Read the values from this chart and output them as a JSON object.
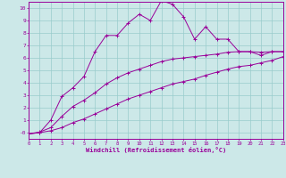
{
  "bg_color": "#cce8e8",
  "line_color": "#990099",
  "grid_color": "#99cccc",
  "xlabel": "Windchill (Refroidissement éolien,°C)",
  "xlabel_color": "#990099",
  "xlim": [
    0,
    23
  ],
  "ylim": [
    -0.5,
    10.5
  ],
  "xticks": [
    0,
    1,
    2,
    3,
    4,
    5,
    6,
    7,
    8,
    9,
    10,
    11,
    12,
    13,
    14,
    15,
    16,
    17,
    18,
    19,
    20,
    21,
    22,
    23
  ],
  "yticks": [
    0,
    1,
    2,
    3,
    4,
    5,
    6,
    7,
    8,
    9,
    10
  ],
  "ytick_labels": [
    "-0",
    "1",
    "2",
    "3",
    "4",
    "5",
    "6",
    "7",
    "8",
    "9",
    "10"
  ],
  "line1_x": [
    0,
    1,
    2,
    3,
    4,
    5,
    6,
    7,
    8,
    9,
    10,
    11,
    12,
    13,
    14,
    15,
    16,
    17,
    18,
    19,
    20,
    21,
    22,
    23
  ],
  "line1_y": [
    -0.1,
    0.0,
    1.0,
    2.9,
    3.6,
    4.5,
    6.5,
    7.8,
    7.8,
    8.8,
    9.5,
    9.0,
    10.6,
    10.3,
    9.3,
    7.5,
    8.5,
    7.5,
    7.5,
    6.5,
    6.5,
    6.2,
    6.5,
    6.5
  ],
  "line2_x": [
    0,
    1,
    2,
    3,
    4,
    5,
    6,
    7,
    8,
    9,
    10,
    11,
    12,
    13,
    14,
    15,
    16,
    17,
    18,
    19,
    20,
    21,
    22,
    23
  ],
  "line2_y": [
    -0.1,
    0.05,
    0.4,
    1.3,
    2.1,
    2.6,
    3.2,
    3.9,
    4.4,
    4.8,
    5.1,
    5.4,
    5.7,
    5.9,
    6.0,
    6.1,
    6.2,
    6.3,
    6.45,
    6.5,
    6.5,
    6.45,
    6.5,
    6.5
  ],
  "line3_x": [
    0,
    1,
    2,
    3,
    4,
    5,
    6,
    7,
    8,
    9,
    10,
    11,
    12,
    13,
    14,
    15,
    16,
    17,
    18,
    19,
    20,
    21,
    22,
    23
  ],
  "line3_y": [
    -0.1,
    0.0,
    0.15,
    0.4,
    0.8,
    1.1,
    1.5,
    1.9,
    2.3,
    2.7,
    3.0,
    3.3,
    3.6,
    3.9,
    4.1,
    4.3,
    4.6,
    4.85,
    5.1,
    5.3,
    5.4,
    5.6,
    5.8,
    6.1
  ]
}
